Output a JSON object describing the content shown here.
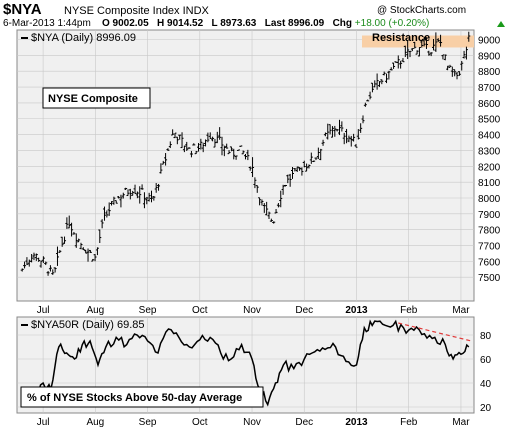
{
  "header": {
    "symbol": "$NYA",
    "name": "NYSE Composite Index INDX",
    "date": "6-Mar-2013 1:44pm",
    "open": "O 9002.05",
    "high": "H 9014.52",
    "low": "L 8973.63",
    "last_label": "Last 8996.09",
    "chg_label": "Chg",
    "chg_value": "+18.00 (+0.20%)",
    "brand": "@ StockCharts.com",
    "arrow_icon": "triangle-up-icon",
    "arrow_color": "#1a9a1a"
  },
  "colors": {
    "panel_bg": "#f0f0f0",
    "grid": "#c8c8c8",
    "resistance": "#f8cfa6",
    "trendline": "#e03a3a"
  },
  "chart_data": [
    {
      "type": "ohlc",
      "legend": "$NYA (Daily) 8996.09",
      "label_box": "NYSE Composite",
      "annotation": "Resistance",
      "resistance_level": [
        8975,
        9000
      ],
      "ylim": [
        7350,
        9060
      ],
      "y_ticks": [
        7500,
        7600,
        7700,
        7800,
        7900,
        8000,
        8100,
        8200,
        8300,
        8400,
        8500,
        8600,
        8700,
        8800,
        8900,
        9000
      ],
      "x_ticks": [
        "Jul",
        "Aug",
        "Sep",
        "Oct",
        "Nov",
        "Dec",
        "2013",
        "Feb",
        "Mar"
      ],
      "x_tick_months": [
        6,
        7,
        8,
        9,
        10,
        11,
        12,
        13,
        14
      ],
      "grid": true,
      "series": [
        {
          "m": 5.6,
          "v": 7550
        },
        {
          "m": 5.8,
          "v": 7650
        },
        {
          "m": 6.0,
          "v": 7600
        },
        {
          "m": 6.2,
          "v": 7500
        },
        {
          "m": 6.35,
          "v": 7700
        },
        {
          "m": 6.5,
          "v": 7850
        },
        {
          "m": 6.65,
          "v": 7750
        },
        {
          "m": 6.8,
          "v": 7680
        },
        {
          "m": 7.0,
          "v": 7620
        },
        {
          "m": 7.15,
          "v": 7850
        },
        {
          "m": 7.3,
          "v": 7950
        },
        {
          "m": 7.5,
          "v": 8020
        },
        {
          "m": 7.7,
          "v": 8060
        },
        {
          "m": 7.9,
          "v": 8030
        },
        {
          "m": 8.1,
          "v": 7980
        },
        {
          "m": 8.3,
          "v": 8200
        },
        {
          "m": 8.5,
          "v": 8420
        },
        {
          "m": 8.6,
          "v": 8380
        },
        {
          "m": 8.8,
          "v": 8300
        },
        {
          "m": 9.0,
          "v": 8320
        },
        {
          "m": 9.2,
          "v": 8400
        },
        {
          "m": 9.4,
          "v": 8350
        },
        {
          "m": 9.6,
          "v": 8280
        },
        {
          "m": 9.8,
          "v": 8300
        },
        {
          "m": 10.0,
          "v": 8200
        },
        {
          "m": 10.2,
          "v": 7950
        },
        {
          "m": 10.4,
          "v": 7850
        },
        {
          "m": 10.6,
          "v": 8080
        },
        {
          "m": 10.8,
          "v": 8150
        },
        {
          "m": 11.0,
          "v": 8200
        },
        {
          "m": 11.2,
          "v": 8250
        },
        {
          "m": 11.4,
          "v": 8380
        },
        {
          "m": 11.6,
          "v": 8450
        },
        {
          "m": 11.8,
          "v": 8400
        },
        {
          "m": 12.0,
          "v": 8340
        },
        {
          "m": 12.2,
          "v": 8620
        },
        {
          "m": 12.4,
          "v": 8720
        },
        {
          "m": 12.6,
          "v": 8780
        },
        {
          "m": 12.8,
          "v": 8850
        },
        {
          "m": 13.0,
          "v": 8920
        },
        {
          "m": 13.2,
          "v": 8960
        },
        {
          "m": 13.4,
          "v": 8930
        },
        {
          "m": 13.6,
          "v": 8990
        },
        {
          "m": 13.75,
          "v": 8820
        },
        {
          "m": 13.9,
          "v": 8760
        },
        {
          "m": 14.0,
          "v": 8820
        },
        {
          "m": 14.15,
          "v": 8996
        }
      ]
    },
    {
      "type": "line",
      "legend": "$NYA50R (Daily) 69.85",
      "label_box": "% of NYSE Stocks Above 50-day Average",
      "ylim": [
        15,
        95
      ],
      "y_ticks": [
        20,
        40,
        60,
        80
      ],
      "x_ticks": [
        "Jul",
        "Aug",
        "Sep",
        "Oct",
        "Nov",
        "Dec",
        "2013",
        "Feb",
        "Mar"
      ],
      "x_tick_months": [
        6,
        7,
        8,
        9,
        10,
        11,
        12,
        13,
        14
      ],
      "grid": true,
      "x": [
        5.6,
        5.8,
        6.0,
        6.15,
        6.3,
        6.45,
        6.6,
        6.75,
        6.9,
        7.05,
        7.2,
        7.4,
        7.6,
        7.8,
        8.0,
        8.2,
        8.4,
        8.6,
        8.8,
        9.0,
        9.2,
        9.4,
        9.6,
        9.8,
        10.0,
        10.15,
        10.3,
        10.45,
        10.6,
        10.8,
        11.0,
        11.2,
        11.4,
        11.6,
        11.8,
        12.0,
        12.15,
        12.3,
        12.5,
        12.7,
        12.9,
        13.1,
        13.3,
        13.5,
        13.7,
        13.85,
        14.0,
        14.15
      ],
      "y": [
        30,
        25,
        40,
        35,
        70,
        65,
        60,
        72,
        75,
        55,
        70,
        78,
        72,
        80,
        75,
        65,
        85,
        78,
        70,
        76,
        78,
        65,
        60,
        72,
        60,
        35,
        22,
        40,
        55,
        52,
        60,
        66,
        68,
        70,
        58,
        55,
        86,
        88,
        89,
        88,
        86,
        84,
        81,
        78,
        72,
        60,
        64,
        70
      ],
      "trendline": {
        "x": [
          12.8,
          14.2
        ],
        "y": [
          90,
          75
        ]
      }
    }
  ]
}
